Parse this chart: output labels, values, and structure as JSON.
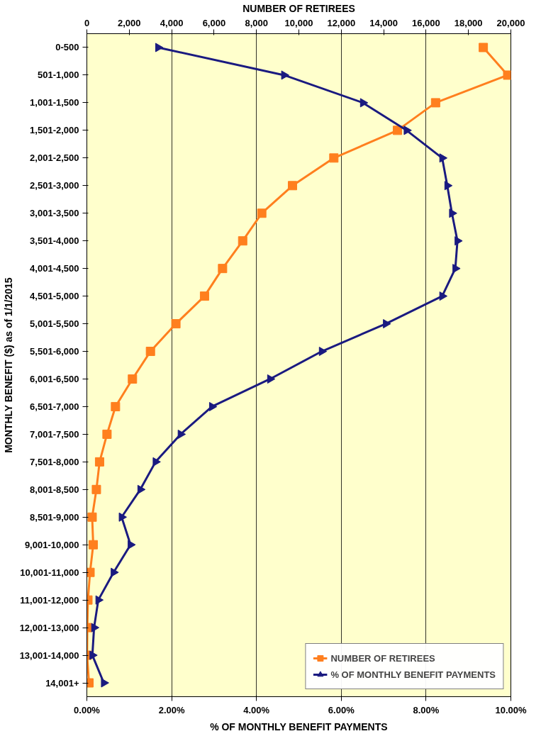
{
  "chart_data": {
    "type": "line",
    "orientation": "horizontal",
    "categories": [
      "0-500",
      "501-1,000",
      "1,001-1,500",
      "1,501-2,000",
      "2,001-2,500",
      "2,501-3,000",
      "3,001-3,500",
      "3,501-4,000",
      "4,001-4,500",
      "4,501-5,000",
      "5,001-5,500",
      "5,501-6,000",
      "6,001-6,500",
      "6,501-7,000",
      "7,001-7,500",
      "7,501-8,000",
      "8,001-8,500",
      "8,501-9,000",
      "9,001-10,000",
      "10,001-11,000",
      "11,001-12,000",
      "12,001-13,000",
      "13,001-14,000",
      "14,001+"
    ],
    "series": [
      {
        "name": "NUMBER OF RETIREES",
        "color": "#ff7f1e",
        "axis": "x2",
        "marker": "square",
        "values": [
          18700,
          19850,
          16450,
          14650,
          11650,
          9700,
          8250,
          7350,
          6400,
          5550,
          4200,
          3000,
          2150,
          1350,
          950,
          600,
          450,
          250,
          300,
          150,
          50,
          20,
          10,
          100
        ]
      },
      {
        "name": "% OF MONTHLY BENEFIT PAYMENTS",
        "color": "#1a1a80",
        "marker": "triangle",
        "values": [
          1.68,
          4.65,
          6.51,
          7.54,
          8.38,
          8.5,
          8.61,
          8.74,
          8.69,
          8.38,
          7.05,
          5.54,
          4.32,
          2.95,
          2.21,
          1.62,
          1.26,
          0.82,
          1.03,
          0.63,
          0.27,
          0.17,
          0.13,
          0.4
        ]
      }
    ],
    "xlabel": "% OF MONTHLY BENEFIT PAYMENTS",
    "x2label": "NUMBER OF RETIREES",
    "ylabel": "MONTHLY BENEFIT ($) as of 1/1/2015",
    "xlim": [
      0,
      10
    ],
    "xticks": [
      {
        "value": 0,
        "label": "0.00%"
      },
      {
        "value": 2,
        "label": "2.00%"
      },
      {
        "value": 4,
        "label": "4.00%"
      },
      {
        "value": 6,
        "label": "6.00%"
      },
      {
        "value": 8,
        "label": "8.00%"
      },
      {
        "value": 10,
        "label": "10.00%"
      }
    ],
    "x2lim": [
      0,
      20000
    ],
    "x2ticks": [
      0,
      {
        "value": 2000,
        "label": "2,000"
      },
      {
        "value": 4000,
        "label": "4,000"
      },
      {
        "value": 6000,
        "label": "6,000"
      },
      {
        "value": 8000,
        "label": "8,000"
      },
      {
        "value": 10000,
        "label": "10,000"
      },
      {
        "value": 12000,
        "label": "12,000"
      },
      {
        "value": 14000,
        "label": "14,000"
      },
      {
        "value": 16000,
        "label": "16,000"
      },
      {
        "value": 18000,
        "label": "18,000"
      },
      {
        "value": 20000,
        "label": "20,000"
      }
    ],
    "grid": "x",
    "legend": "bottom right",
    "line_style": "solid"
  }
}
